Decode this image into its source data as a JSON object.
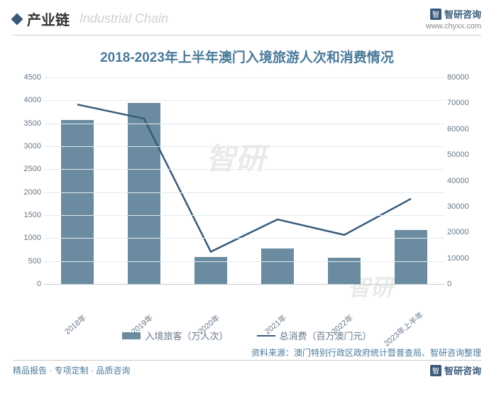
{
  "header": {
    "section_label": "产业链",
    "section_label_en": "Industrial Chain",
    "logo_text": "智研咨询",
    "logo_url": "www.chyxx.com"
  },
  "watermark": "智研",
  "chart": {
    "title": "2018-2023年上半年澳门入境旅游人次和消费情况",
    "type": "bar+line",
    "categories": [
      "2018年",
      "2019年",
      "2020年",
      "2021年",
      "2022年",
      "2023年上半年"
    ],
    "bar_series": {
      "name": "入境旅客（万人次）",
      "values": [
        3580,
        3940,
        590,
        770,
        570,
        1180
      ],
      "color": "#6a8ba0"
    },
    "line_series": {
      "name": "总消费（百万澳门元）",
      "values": [
        69500,
        64000,
        12500,
        25000,
        19000,
        33000
      ],
      "color": "#3a5a7a",
      "stroke_width": 2.5
    },
    "y_left": {
      "min": 0,
      "max": 4500,
      "step": 500,
      "label_fontsize": 11,
      "color": "#667788"
    },
    "y_right": {
      "min": 0,
      "max": 80000,
      "step": 10000,
      "label_fontsize": 11,
      "color": "#667788"
    },
    "grid_color": "#e3eaef",
    "background_color": "#ffffff",
    "axis_color": "#c0cbd4",
    "title_color": "#4a7a9a",
    "title_fontsize": 19,
    "x_label_rotation": -40
  },
  "source": "资料来源：澳门特别行政区政府统计暨普查局、智研咨询整理",
  "footer": {
    "tagline": "精品报告 · 专项定制 · 品质咨询",
    "logo_text": "智研咨询"
  }
}
